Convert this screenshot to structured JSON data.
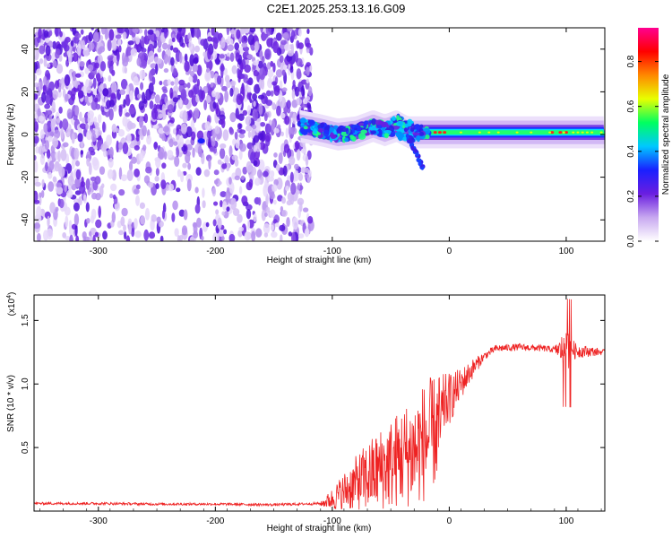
{
  "title": "C2E1.2025.253.13.16.G09",
  "chart_data": [
    {
      "type": "heatmap",
      "xlabel": "Height of straight line (km)",
      "ylabel": "Frequency (Hz)",
      "xlim": [
        -355,
        133
      ],
      "ylim": [
        -50,
        50
      ],
      "xticks": [
        -300,
        -200,
        -100,
        0,
        100
      ],
      "xtick_labels": [
        "-300",
        "-200",
        "-100",
        "0",
        "100"
      ],
      "yticks": [
        -40,
        -20,
        0,
        20,
        40
      ],
      "ytick_labels": [
        "-40",
        "-20",
        "0",
        "20",
        "40"
      ],
      "noise_region_x": [
        -355,
        -118
      ],
      "signal_x": [
        -128,
        133
      ],
      "signal_center_hz": [
        {
          "x": -128,
          "y": 4
        },
        {
          "x": -110,
          "y": 2
        },
        {
          "x": -95,
          "y": 0
        },
        {
          "x": -80,
          "y": 1
        },
        {
          "x": -65,
          "y": 4
        },
        {
          "x": -55,
          "y": 2
        },
        {
          "x": -45,
          "y": 4
        },
        {
          "x": -35,
          "y": 1
        },
        {
          "x": -20,
          "y": 1
        },
        {
          "x": 0,
          "y": 1
        },
        {
          "x": 50,
          "y": 1
        },
        {
          "x": 133,
          "y": 1
        }
      ],
      "colorbar": {
        "label": "Normalized spectral amplitude",
        "range": [
          0.0,
          0.95
        ],
        "ticks": [
          0.0,
          0.2,
          0.4,
          0.6,
          0.8
        ],
        "tick_labels": [
          "0.0",
          "0.2",
          "0.4",
          "0.6",
          "0.8"
        ],
        "colors": [
          "#ffffff",
          "#c8a8f0",
          "#6a1ee0",
          "#1a20ff",
          "#00c8ff",
          "#00ff60",
          "#e8ff00",
          "#ff8800",
          "#ff0000",
          "#ff0090"
        ]
      }
    },
    {
      "type": "line",
      "xlabel": "Height of straight line (km)",
      "ylabel": "SNR (10 * v/v)",
      "y_multiplier": "(x10",
      "y_multiplier_exp": "4",
      "y_multiplier_close": ")",
      "xlim": [
        -355,
        133
      ],
      "ylim": [
        0.0,
        1.7
      ],
      "xticks": [
        -300,
        -200,
        -100,
        0,
        100
      ],
      "xtick_labels": [
        "-300",
        "-200",
        "-100",
        "0",
        "100"
      ],
      "yticks": [
        0.5,
        1.0,
        1.5
      ],
      "ytick_labels": [
        "0.5",
        "1.0",
        "1.5"
      ],
      "series": [
        {
          "name": "SNR",
          "color": "#ee2222",
          "points": [
            {
              "x": -355,
              "y": 0.06
            },
            {
              "x": -300,
              "y": 0.06
            },
            {
              "x": -250,
              "y": 0.055
            },
            {
              "x": -200,
              "y": 0.055
            },
            {
              "x": -150,
              "y": 0.05
            },
            {
              "x": -110,
              "y": 0.06
            },
            {
              "x": -100,
              "y": 0.12
            },
            {
              "x": -90,
              "y": 0.2
            },
            {
              "x": -80,
              "y": 0.28
            },
            {
              "x": -70,
              "y": 0.35
            },
            {
              "x": -60,
              "y": 0.42
            },
            {
              "x": -50,
              "y": 0.48
            },
            {
              "x": -40,
              "y": 0.55
            },
            {
              "x": -30,
              "y": 0.6
            },
            {
              "x": -20,
              "y": 0.7
            },
            {
              "x": -10,
              "y": 0.78
            },
            {
              "x": 0,
              "y": 0.88
            },
            {
              "x": 10,
              "y": 1.0
            },
            {
              "x": 20,
              "y": 1.12
            },
            {
              "x": 30,
              "y": 1.22
            },
            {
              "x": 40,
              "y": 1.28
            },
            {
              "x": 60,
              "y": 1.29
            },
            {
              "x": 80,
              "y": 1.28
            },
            {
              "x": 90,
              "y": 1.27
            },
            {
              "x": 100,
              "y": 1.27
            },
            {
              "x": 110,
              "y": 1.26
            },
            {
              "x": 133,
              "y": 1.25
            }
          ],
          "noise_amplitude": [
            {
              "x": -355,
              "a": 0.02
            },
            {
              "x": -110,
              "a": 0.02
            },
            {
              "x": -95,
              "a": 0.15
            },
            {
              "x": -70,
              "a": 0.35
            },
            {
              "x": -40,
              "a": 0.5
            },
            {
              "x": -20,
              "a": 0.6
            },
            {
              "x": -5,
              "a": 0.5
            },
            {
              "x": 10,
              "a": 0.25
            },
            {
              "x": 30,
              "a": 0.06
            },
            {
              "x": 90,
              "a": 0.05
            },
            {
              "x": 100,
              "a": 0.35
            },
            {
              "x": 108,
              "a": 0.12
            },
            {
              "x": 133,
              "a": 0.04
            }
          ]
        }
      ]
    }
  ]
}
